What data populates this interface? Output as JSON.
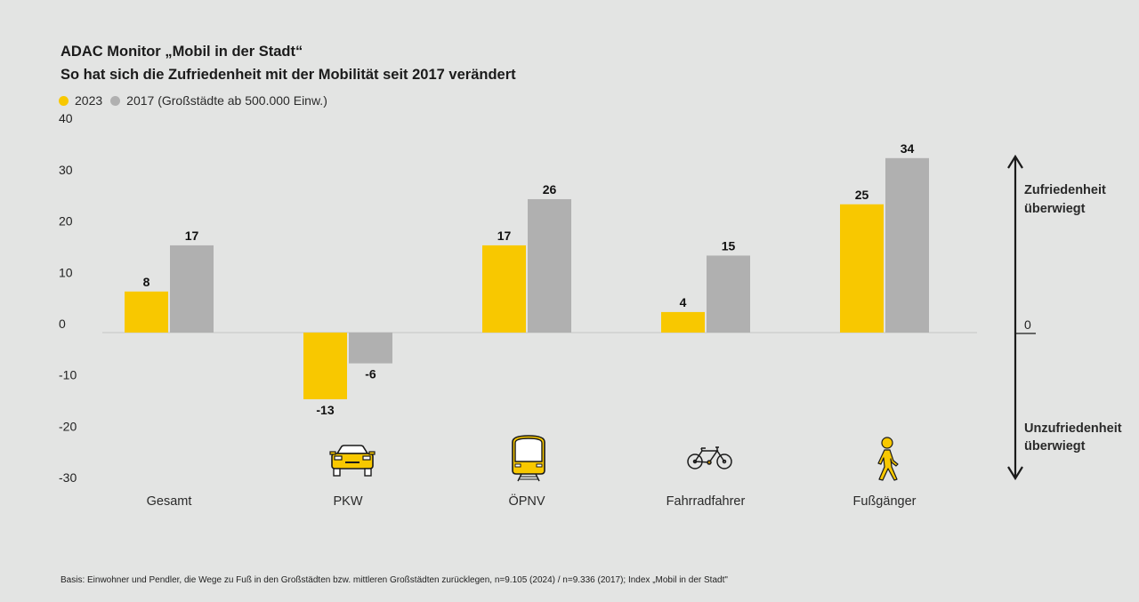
{
  "title": {
    "line1": "ADAC Monitor „Mobil in der Stadt“",
    "line2": "So hat sich die Zufriedenheit mit der Mobilität seit 2017 verändert"
  },
  "legend": [
    {
      "label": "2023",
      "color": "#f8c800"
    },
    {
      "label": "2017 (Großstädte ab 500.000 Einw.)",
      "color": "#b0b0b0"
    }
  ],
  "side_annotation": {
    "top_line1": "Zufriedenheit",
    "top_line2": "überwiegt",
    "zero_label": "0",
    "bottom_line1": "Unzufriedenheit",
    "bottom_line2": "überwiegt"
  },
  "icons": [
    "",
    "car-icon",
    "train-icon",
    "bicycle-icon",
    "pedestrian-icon"
  ],
  "footnote": "Basis: Einwohner und Pendler, die Wege zu Fuß in den Großstädten bzw. mittleren Großstädten zurücklegen, n=9.105 (2024) / n=9.336 (2017); Index „Mobil in der Stadt\"",
  "chart_data": {
    "type": "bar",
    "title": "ADAC Monitor „Mobil in der Stadt“ – So hat sich die Zufriedenheit mit der Mobilität seit 2017 verändert",
    "categories": [
      "Gesamt",
      "PKW",
      "ÖPNV",
      "Fahrradfahrer",
      "Fußgänger"
    ],
    "series": [
      {
        "name": "2023",
        "color": "#f8c800",
        "values": [
          8,
          -13,
          17,
          4,
          25
        ]
      },
      {
        "name": "2017 (Großstädte ab 500.000 Einw.)",
        "color": "#b0b0b0",
        "values": [
          17,
          -6,
          26,
          15,
          34
        ]
      }
    ],
    "xlabel": "",
    "ylabel": "",
    "ylim": [
      -30,
      40
    ],
    "yticks": [
      40,
      30,
      20,
      10,
      0,
      -10,
      -20,
      -30
    ],
    "grid": false,
    "legend_position": "top-left"
  }
}
